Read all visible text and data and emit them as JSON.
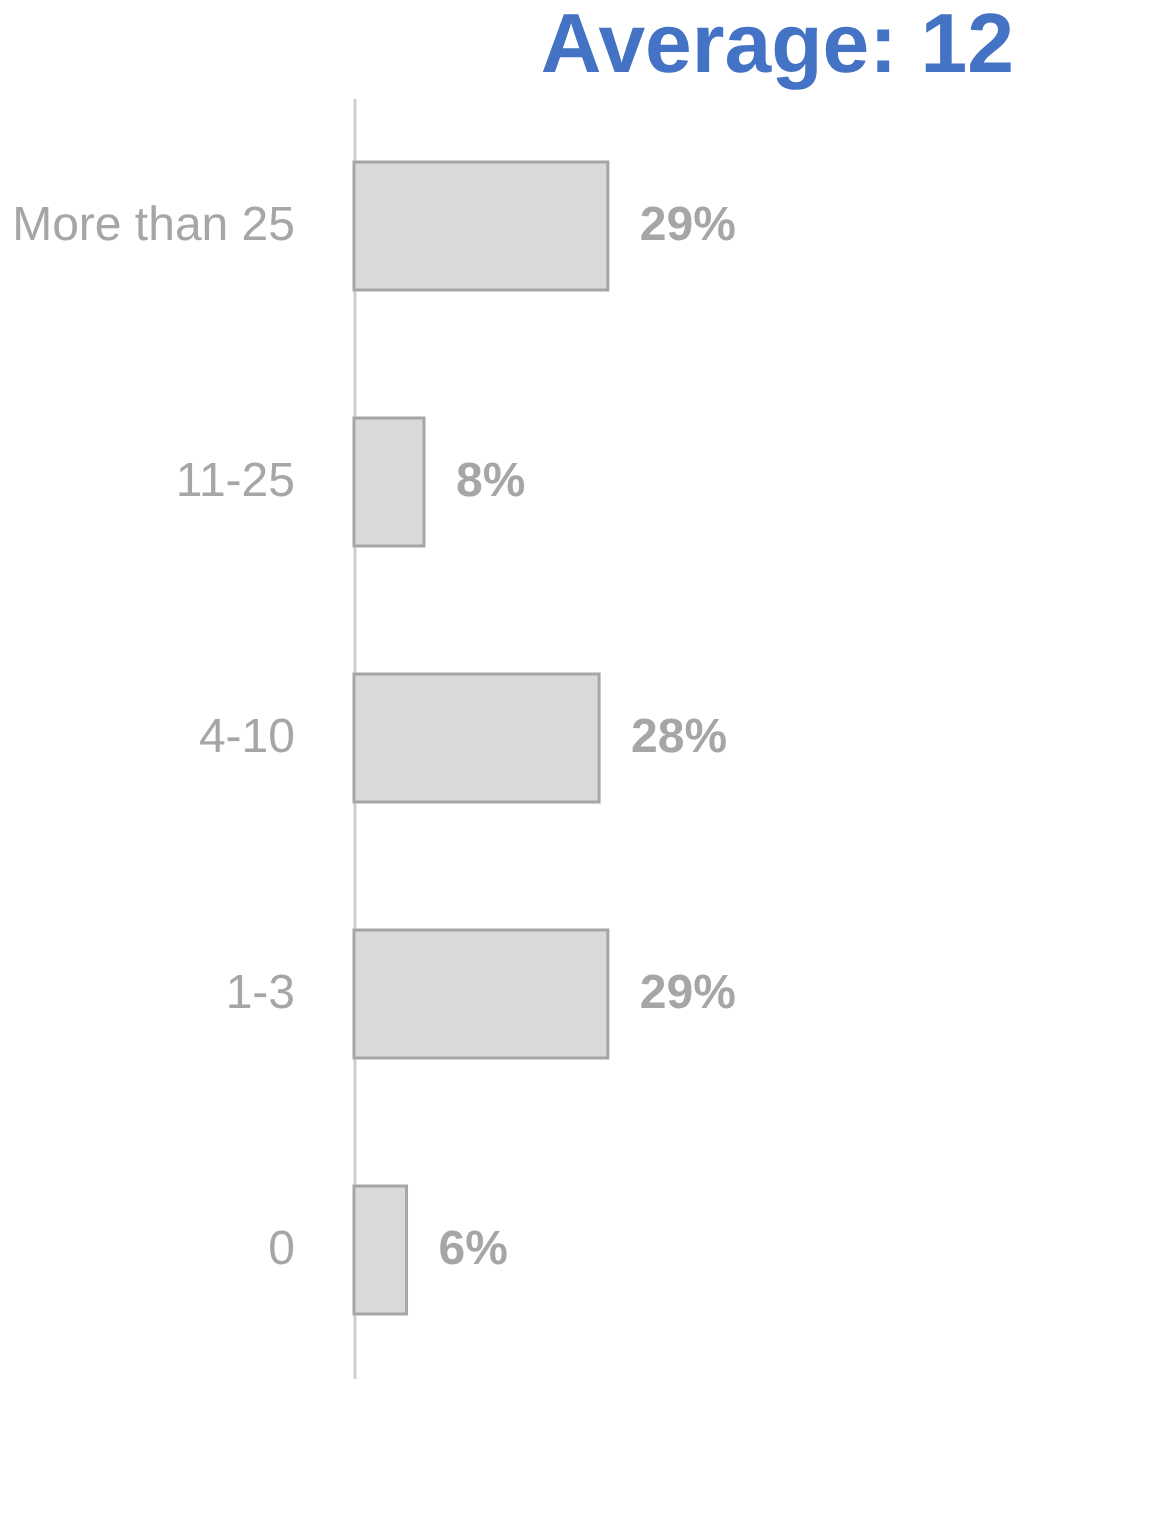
{
  "chart_data": {
    "type": "bar",
    "orientation": "horizontal",
    "title": "Average: 12",
    "categories": [
      "More than 25",
      "11-25",
      "4-10",
      "1-3",
      "0"
    ],
    "values": [
      29,
      8,
      28,
      29,
      6
    ],
    "value_labels": [
      "29%",
      "8%",
      "28%",
      "29%",
      "6%"
    ],
    "color": "#d9d9d9",
    "grid": false
  }
}
